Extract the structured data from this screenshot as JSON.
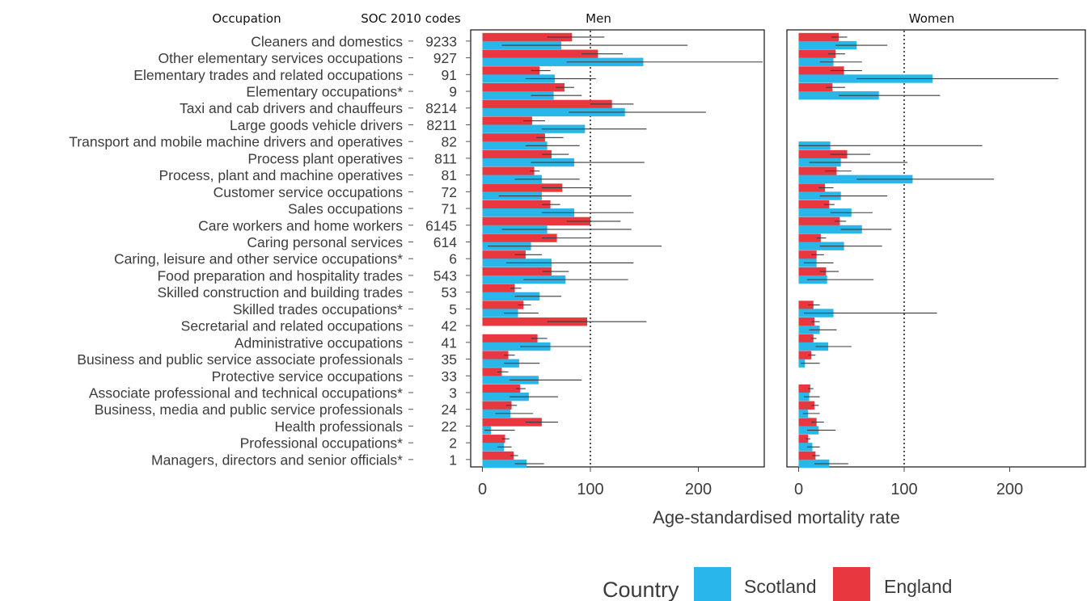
{
  "chart_data": {
    "type": "bar",
    "orientation": "horizontal",
    "column_headers": {
      "occupation": "Occupation",
      "soc": "SOC 2010 codes"
    },
    "xlabel": "Age-standardised mortality rate",
    "xlim": [
      -10,
      280
    ],
    "xticks": [
      "0",
      "100",
      "200"
    ],
    "reference_line": 100,
    "legend": {
      "title": "Country",
      "position": "bottom"
    },
    "series": [
      {
        "name": "Scotland",
        "color": "#29B6E8"
      },
      {
        "name": "England",
        "color": "#E8373E"
      }
    ],
    "panels": [
      {
        "label": "Men"
      },
      {
        "label": "Women"
      }
    ],
    "rows": [
      {
        "occupation": "Cleaners and domestics",
        "soc": "9233",
        "men": {
          "scotland": [
            73,
            18,
            190
          ],
          "england": [
            83,
            60,
            113
          ]
        },
        "women": {
          "scotland": [
            55,
            35,
            84
          ],
          "england": [
            38,
            31,
            46
          ]
        }
      },
      {
        "occupation": "Other elementary services occupations",
        "soc": "927",
        "men": {
          "scotland": [
            149,
            78,
            262
          ],
          "england": [
            107,
            92,
            130
          ]
        },
        "women": {
          "scotland": [
            33,
            20,
            60
          ],
          "england": [
            35,
            28,
            44
          ]
        }
      },
      {
        "occupation": "Elementary trades and related occupations",
        "soc": "91",
        "men": {
          "scotland": [
            67,
            40,
            105
          ],
          "england": [
            53,
            45,
            63
          ]
        },
        "women": {
          "scotland": [
            127,
            55,
            246
          ],
          "england": [
            43,
            30,
            60
          ]
        }
      },
      {
        "occupation": "Elementary occupations*",
        "soc": "9",
        "men": {
          "scotland": [
            66,
            45,
            92
          ],
          "england": [
            76,
            68,
            85
          ]
        },
        "women": {
          "scotland": [
            76,
            38,
            134
          ],
          "england": [
            32,
            26,
            44
          ]
        }
      },
      {
        "occupation": "Taxi and cab drivers and chauffeurs",
        "soc": "8214",
        "men": {
          "scotland": [
            132,
            80,
            207
          ],
          "england": [
            120,
            100,
            140
          ]
        },
        "women": null
      },
      {
        "occupation": "Large goods vehicle drivers",
        "soc": "8211",
        "men": {
          "scotland": [
            95,
            55,
            152
          ],
          "england": [
            46,
            38,
            58
          ]
        },
        "women": null
      },
      {
        "occupation": "Transport and mobile machine drivers and operatives",
        "soc": "82",
        "men": {
          "scotland": [
            60,
            40,
            90
          ],
          "england": [
            58,
            50,
            75
          ]
        },
        "women": {
          "scotland": [
            30,
            0,
            174
          ],
          "england": null
        }
      },
      {
        "occupation": "Process plant operatives",
        "soc": "811",
        "men": {
          "scotland": [
            85,
            45,
            150
          ],
          "england": [
            64,
            55,
            80
          ]
        },
        "women": {
          "scotland": [
            40,
            10,
            103
          ],
          "england": [
            46,
            30,
            68
          ]
        }
      },
      {
        "occupation": "Process, plant and machine operatives",
        "soc": "81",
        "men": {
          "scotland": [
            55,
            30,
            90
          ],
          "england": [
            48,
            44,
            53
          ]
        },
        "women": {
          "scotland": [
            108,
            55,
            185
          ],
          "england": [
            36,
            25,
            50
          ]
        }
      },
      {
        "occupation": "Customer service occupations",
        "soc": "72",
        "men": {
          "scotland": [
            55,
            15,
            138
          ],
          "england": [
            74,
            55,
            102
          ]
        },
        "women": {
          "scotland": [
            40,
            20,
            84
          ],
          "england": [
            25,
            19,
            33
          ]
        }
      },
      {
        "occupation": "Sales occupations",
        "soc": "71",
        "men": {
          "scotland": [
            85,
            55,
            140
          ],
          "england": [
            63,
            55,
            72
          ]
        },
        "women": {
          "scotland": [
            50,
            30,
            70
          ],
          "england": [
            29,
            24,
            34
          ]
        }
      },
      {
        "occupation": "Care workers and home workers",
        "soc": "6145",
        "men": {
          "scotland": [
            60,
            18,
            138
          ],
          "england": [
            100,
            78,
            128
          ]
        },
        "women": {
          "scotland": [
            60,
            40,
            88
          ],
          "england": [
            39,
            34,
            45
          ]
        }
      },
      {
        "occupation": "Caring personal services",
        "soc": "614",
        "men": {
          "scotland": [
            45,
            5,
            166
          ],
          "england": [
            69,
            55,
            100
          ]
        },
        "women": {
          "scotland": [
            43,
            20,
            79
          ],
          "england": [
            21,
            17,
            26
          ]
        }
      },
      {
        "occupation": "Caring, leisure and other service occupations*",
        "soc": "6",
        "men": {
          "scotland": [
            64,
            22,
            140
          ],
          "england": [
            40,
            30,
            55
          ]
        },
        "women": {
          "scotland": [
            17,
            5,
            33
          ],
          "england": [
            17,
            12,
            24
          ]
        }
      },
      {
        "occupation": "Food preparation and hospitality trades",
        "soc": "543",
        "men": {
          "scotland": [
            77,
            38,
            135
          ],
          "england": [
            64,
            56,
            80
          ]
        },
        "women": {
          "scotland": [
            27,
            8,
            71
          ],
          "england": [
            26,
            20,
            38
          ]
        }
      },
      {
        "occupation": "Skilled construction and building trades",
        "soc": "53",
        "men": {
          "scotland": [
            53,
            30,
            73
          ],
          "england": [
            30,
            26,
            36
          ]
        },
        "women": null
      },
      {
        "occupation": "Skilled trades occupations*",
        "soc": "5",
        "men": {
          "scotland": [
            33,
            20,
            52
          ],
          "england": [
            38,
            33,
            45
          ]
        },
        "women": {
          "scotland": [
            33,
            5,
            131
          ],
          "england": [
            14,
            9,
            20
          ]
        }
      },
      {
        "occupation": "Secretarial and related occupations",
        "soc": "42",
        "men": {
          "scotland": null,
          "england": [
            97,
            60,
            152
          ]
        },
        "women": {
          "scotland": [
            20,
            10,
            36
          ],
          "england": [
            15,
            12,
            20
          ]
        }
      },
      {
        "occupation": "Administrative occupations",
        "soc": "41",
        "men": {
          "scotland": [
            63,
            35,
            100
          ],
          "england": [
            51,
            45,
            60
          ]
        },
        "women": {
          "scotland": [
            28,
            16,
            50
          ],
          "england": [
            14,
            12,
            17
          ]
        }
      },
      {
        "occupation": "Business and public service associate professionals",
        "soc": "35",
        "men": {
          "scotland": [
            34,
            20,
            53
          ],
          "england": [
            24,
            20,
            30
          ]
        },
        "women": {
          "scotland": [
            6,
            2,
            20
          ],
          "england": [
            12,
            9,
            16
          ]
        }
      },
      {
        "occupation": "Protective service occupations",
        "soc": "33",
        "men": {
          "scotland": [
            52,
            25,
            92
          ],
          "england": [
            18,
            14,
            24
          ]
        },
        "women": null
      },
      {
        "occupation": "Associate professional and technical occupations*",
        "soc": "3",
        "men": {
          "scotland": [
            43,
            25,
            70
          ],
          "england": [
            35,
            31,
            40
          ]
        },
        "women": {
          "scotland": [
            10,
            5,
            20
          ],
          "england": [
            11,
            9,
            14
          ]
        }
      },
      {
        "occupation": "Business, media and public service professionals",
        "soc": "24",
        "men": {
          "scotland": [
            26,
            12,
            47
          ],
          "england": [
            27,
            22,
            32
          ]
        },
        "women": {
          "scotland": [
            9,
            4,
            20
          ],
          "england": [
            15,
            12,
            19
          ]
        }
      },
      {
        "occupation": "Health professionals",
        "soc": "22",
        "men": {
          "scotland": [
            8,
            2,
            30
          ],
          "england": [
            55,
            40,
            70
          ]
        },
        "women": {
          "scotland": [
            19,
            8,
            35
          ],
          "england": [
            17,
            12,
            24
          ]
        }
      },
      {
        "occupation": "Professional occupations*",
        "soc": "2",
        "men": {
          "scotland": [
            20,
            14,
            27
          ],
          "england": [
            21,
            18,
            25
          ]
        },
        "women": {
          "scotland": [
            13,
            8,
            20
          ],
          "england": [
            9,
            7,
            11
          ]
        }
      },
      {
        "occupation": "Managers, directors and senior officials*",
        "soc": "1",
        "men": {
          "scotland": [
            41,
            30,
            57
          ],
          "england": [
            29,
            26,
            33
          ]
        },
        "women": {
          "scotland": [
            29,
            15,
            47
          ],
          "england": [
            16,
            13,
            20
          ]
        }
      }
    ]
  }
}
